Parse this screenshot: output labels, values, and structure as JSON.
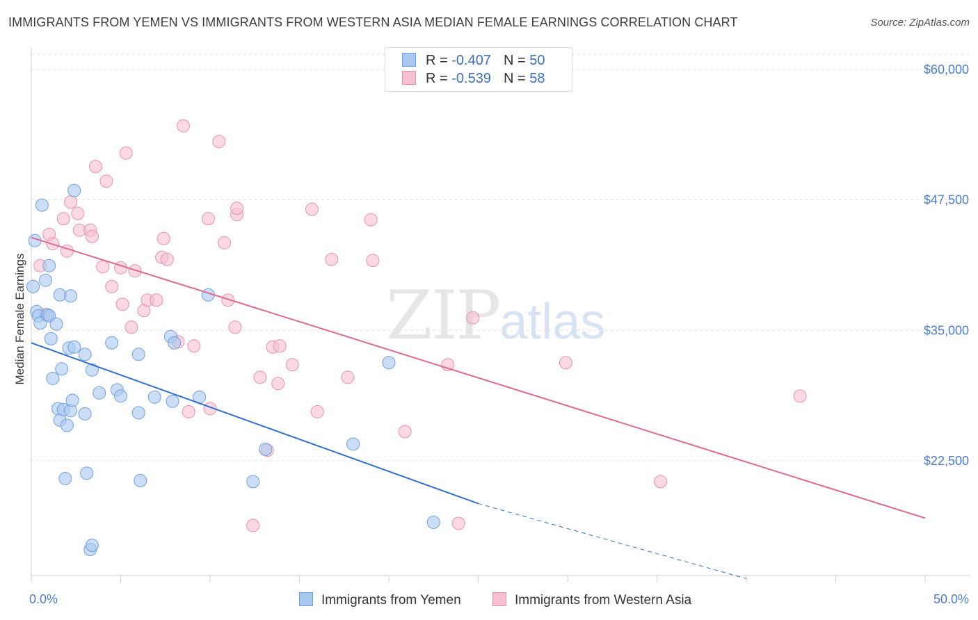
{
  "header": {
    "title": "IMMIGRANTS FROM YEMEN VS IMMIGRANTS FROM WESTERN ASIA MEDIAN FEMALE EARNINGS CORRELATION CHART",
    "source": "Source: ZipAtlas.com"
  },
  "watermark": {
    "zip": "ZIP",
    "atlas": "atlas"
  },
  "legend": {
    "rows": [
      {
        "r_label": "R =",
        "r_value": "-0.407",
        "n_label": "N =",
        "n_value": "50",
        "color": "#a9c8f0",
        "border": "#6f9fe0"
      },
      {
        "r_label": "R =",
        "r_value": "-0.539",
        "n_label": "N =",
        "n_value": "58",
        "color": "#f7c0d0",
        "border": "#e890ac"
      }
    ]
  },
  "bottom_legend": {
    "yemen": "Immigrants from Yemen",
    "western_asia": "Immigrants from Western Asia"
  },
  "colors": {
    "yemen_fill": "#a9c8f0",
    "yemen_stroke": "#6f9fe0",
    "yemen_line": "#2f6fd0",
    "wa_fill": "#f7c0d0",
    "wa_stroke": "#e890ac",
    "wa_line": "#e06890",
    "grid": "#e2e2e2",
    "tick_text": "#4a7cc7"
  },
  "chart_data": {
    "type": "scatter",
    "title": "IMMIGRANTS FROM YEMEN VS IMMIGRANTS FROM WESTERN ASIA MEDIAN FEMALE EARNINGS CORRELATION CHART",
    "xlabel": "",
    "ylabel": "Median Female Earnings",
    "xlim": [
      0,
      0.5
    ],
    "ylim": [
      11500,
      62000
    ],
    "x_tick_labels": [
      {
        "value": 0,
        "label": "0.0%"
      },
      {
        "value": 0.5,
        "label": "50.0%"
      }
    ],
    "y_ticks": [
      {
        "value": 22500,
        "label": "$22,500"
      },
      {
        "value": 35000,
        "label": "$35,000"
      },
      {
        "value": 47500,
        "label": "$47,500"
      },
      {
        "value": 60000,
        "label": "$60,000"
      }
    ],
    "grid": true,
    "legend_position": "top-center",
    "series": [
      {
        "name": "Immigrants from Yemen",
        "R": -0.407,
        "N": 50,
        "trend": {
          "x0": 0.0,
          "y0": 33800,
          "x1": 0.25,
          "y1": 18400,
          "dash_to_x": 0.4,
          "dash_to_y": 11200
        },
        "points": [
          [
            0.001,
            39200
          ],
          [
            0.002,
            43600
          ],
          [
            0.003,
            36800
          ],
          [
            0.004,
            36400
          ],
          [
            0.005,
            35700
          ],
          [
            0.006,
            47000
          ],
          [
            0.008,
            39800
          ],
          [
            0.009,
            36500
          ],
          [
            0.01,
            41200
          ],
          [
            0.01,
            36400
          ],
          [
            0.011,
            34200
          ],
          [
            0.012,
            30400
          ],
          [
            0.014,
            35600
          ],
          [
            0.015,
            27500
          ],
          [
            0.016,
            26400
          ],
          [
            0.016,
            38400
          ],
          [
            0.017,
            31300
          ],
          [
            0.018,
            27400
          ],
          [
            0.019,
            20800
          ],
          [
            0.02,
            25900
          ],
          [
            0.021,
            33300
          ],
          [
            0.022,
            38300
          ],
          [
            0.022,
            27300
          ],
          [
            0.023,
            28300
          ],
          [
            0.024,
            33400
          ],
          [
            0.024,
            48400
          ],
          [
            0.03,
            27000
          ],
          [
            0.03,
            32700
          ],
          [
            0.031,
            21300
          ],
          [
            0.033,
            14000
          ],
          [
            0.034,
            14400
          ],
          [
            0.034,
            31200
          ],
          [
            0.038,
            29000
          ],
          [
            0.045,
            33800
          ],
          [
            0.048,
            29300
          ],
          [
            0.05,
            28700
          ],
          [
            0.06,
            32700
          ],
          [
            0.06,
            27100
          ],
          [
            0.061,
            20600
          ],
          [
            0.069,
            28600
          ],
          [
            0.078,
            34400
          ],
          [
            0.079,
            28200
          ],
          [
            0.08,
            33800
          ],
          [
            0.094,
            28600
          ],
          [
            0.099,
            38400
          ],
          [
            0.124,
            20500
          ],
          [
            0.131,
            23600
          ],
          [
            0.18,
            24100
          ],
          [
            0.2,
            31900
          ],
          [
            0.225,
            16600
          ]
        ]
      },
      {
        "name": "Immigrants from Western Asia",
        "R": -0.539,
        "N": 58,
        "trend": {
          "x0": 0.0,
          "y0": 43900,
          "x1": 0.5,
          "y1": 17000
        },
        "points": [
          [
            0.005,
            41200
          ],
          [
            0.008,
            36500
          ],
          [
            0.01,
            44200
          ],
          [
            0.012,
            43300
          ],
          [
            0.018,
            45700
          ],
          [
            0.02,
            42600
          ],
          [
            0.022,
            47300
          ],
          [
            0.026,
            46200
          ],
          [
            0.027,
            44600
          ],
          [
            0.033,
            44600
          ],
          [
            0.034,
            44000
          ],
          [
            0.036,
            50700
          ],
          [
            0.04,
            41100
          ],
          [
            0.042,
            49300
          ],
          [
            0.045,
            39200
          ],
          [
            0.05,
            41000
          ],
          [
            0.051,
            37500
          ],
          [
            0.053,
            52000
          ],
          [
            0.056,
            35300
          ],
          [
            0.058,
            40700
          ],
          [
            0.063,
            36900
          ],
          [
            0.065,
            37900
          ],
          [
            0.07,
            37900
          ],
          [
            0.073,
            42000
          ],
          [
            0.074,
            43800
          ],
          [
            0.076,
            41800
          ],
          [
            0.082,
            33900
          ],
          [
            0.085,
            54600
          ],
          [
            0.088,
            27200
          ],
          [
            0.091,
            33500
          ],
          [
            0.099,
            45700
          ],
          [
            0.1,
            27500
          ],
          [
            0.105,
            53100
          ],
          [
            0.108,
            43400
          ],
          [
            0.11,
            37900
          ],
          [
            0.114,
            35300
          ],
          [
            0.115,
            46100
          ],
          [
            0.115,
            46700
          ],
          [
            0.124,
            16300
          ],
          [
            0.128,
            30500
          ],
          [
            0.132,
            23500
          ],
          [
            0.135,
            33400
          ],
          [
            0.138,
            29900
          ],
          [
            0.139,
            33500
          ],
          [
            0.146,
            31700
          ],
          [
            0.157,
            46600
          ],
          [
            0.16,
            27200
          ],
          [
            0.168,
            41800
          ],
          [
            0.177,
            30500
          ],
          [
            0.19,
            45600
          ],
          [
            0.191,
            41700
          ],
          [
            0.209,
            25300
          ],
          [
            0.233,
            31700
          ],
          [
            0.239,
            16500
          ],
          [
            0.247,
            36200
          ],
          [
            0.299,
            31900
          ],
          [
            0.352,
            20500
          ],
          [
            0.43,
            28700
          ]
        ]
      }
    ]
  }
}
